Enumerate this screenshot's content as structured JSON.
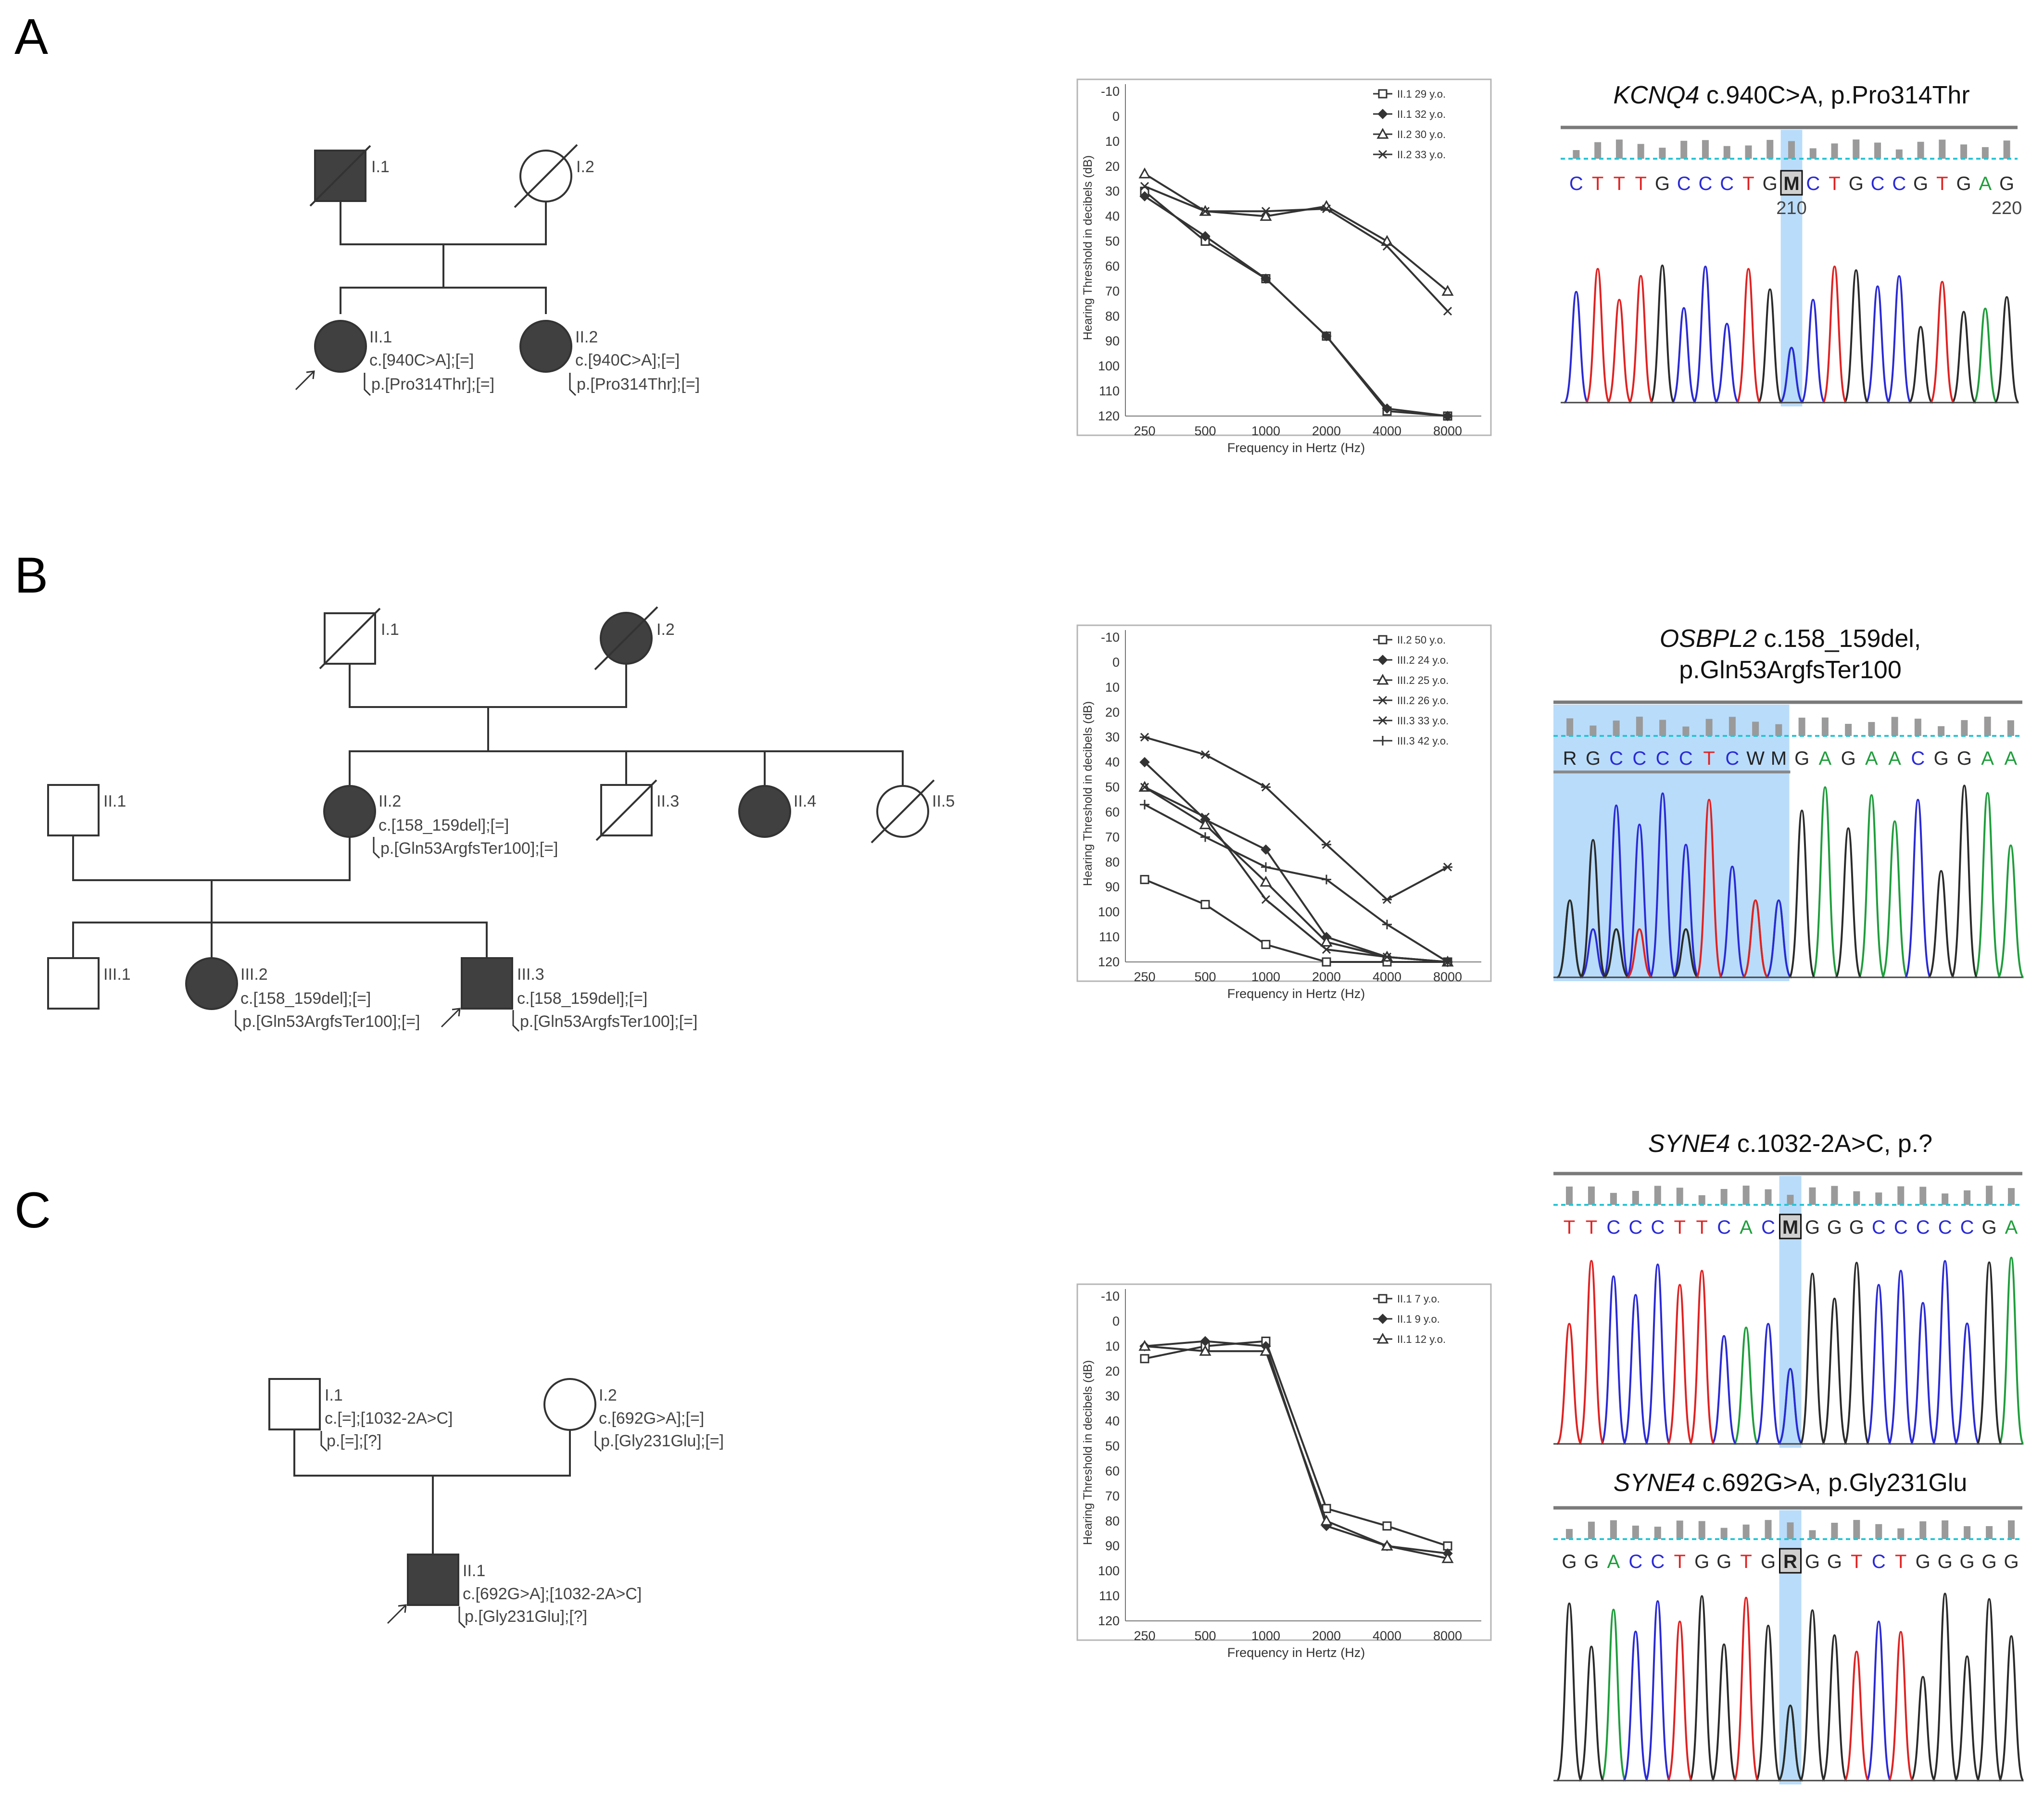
{
  "panels": [
    {
      "letter": "A",
      "pedigree": {
        "labels": {
          "I1": "I.1",
          "I2": "I.2",
          "II1": "II.1",
          "II2": "II.2"
        },
        "variants": {
          "II1_c": "c.[940C>A];[=]",
          "II1_p": "p.[Pro314Thr];[=]",
          "II2_c": "c.[940C>A];[=]",
          "II2_p": "p.[Pro314Thr];[=]"
        }
      },
      "seq": {
        "title_gene": "KCNQ4",
        "title_rest": " c.940C>A, p.Pro314Thr",
        "bases": [
          "C",
          "T",
          "T",
          "T",
          "G",
          "C",
          "C",
          "C",
          "T",
          "G",
          "M",
          "C",
          "T",
          "G",
          "C",
          "C",
          "G",
          "T",
          "G",
          "A",
          "G"
        ],
        "positions": [
          "210",
          "220"
        ]
      }
    },
    {
      "letter": "B",
      "pedigree": {
        "labels": {
          "I1": "I.1",
          "I2": "I.2",
          "II1": "II.1",
          "II2": "II.2",
          "II3": "II.3",
          "II4": "II.4",
          "II5": "II.5",
          "III1": "III.1",
          "III2": "III.2",
          "III3": "III.3"
        },
        "variants": {
          "II2_c": "c.[158_159del];[=]",
          "II2_p": "p.[Gln53ArgfsTer100];[=]",
          "III2_c": "c.[158_159del];[=]",
          "III2_p": "p.[Gln53ArgfsTer100];[=]",
          "III3_c": "c.[158_159del];[=]",
          "III3_p": "p.[Gln53ArgfsTer100];[=]"
        }
      },
      "seq": {
        "title_gene": "OSBPL2",
        "title_rest": " c.158_159del,",
        "title_line2": "p.Gln53ArgfsTer100",
        "bases": [
          "R",
          "G",
          "C",
          "C",
          "C",
          "C",
          "T",
          "C",
          "W",
          "M",
          "G",
          "A",
          "G",
          "A",
          "A",
          "C",
          "G",
          "G",
          "A",
          "A"
        ]
      }
    },
    {
      "letter": "C",
      "pedigree": {
        "labels": {
          "I1": "I.1",
          "I2": "I.2",
          "II1": "II.1"
        },
        "variants": {
          "I1_c": "c.[=];[1032-2A>C]",
          "I1_p": "p.[=];[?]",
          "I2_c": "c.[692G>A];[=]",
          "I2_p": "p.[Gly231Glu];[=]",
          "II1_c": "c.[692G>A];[1032-2A>C]",
          "II1_p": "p.[Gly231Glu];[?]"
        }
      },
      "seq": {
        "title_gene": "SYNE4",
        "title_rest": " c.1032-2A>C, p.?",
        "bases": [
          "T",
          "T",
          "C",
          "C",
          "C",
          "T",
          "T",
          "C",
          "A",
          "C",
          "M",
          "G",
          "G",
          "G",
          "C",
          "C",
          "C",
          "C",
          "C",
          "G",
          "A"
        ]
      },
      "seq2": {
        "title_gene": "SYNE4",
        "title_rest": " c.692G>A, p.Gly231Glu",
        "bases": [
          "G",
          "G",
          "A",
          "C",
          "C",
          "T",
          "G",
          "G",
          "T",
          "G",
          "R",
          "G",
          "G",
          "T",
          "C",
          "T",
          "G",
          "G",
          "G",
          "G",
          "G"
        ]
      }
    }
  ],
  "chart_data": [
    {
      "type": "line",
      "xlabel": "Frequency in Hertz (Hz)",
      "ylabel": "Hearing Threshold in decibels (dB)",
      "categories": [
        "250",
        "500",
        "1000",
        "2000",
        "4000",
        "8000"
      ],
      "ylim": [
        -10,
        120
      ],
      "yticks": [
        "-10",
        "0",
        "10",
        "20",
        "30",
        "40",
        "50",
        "60",
        "70",
        "80",
        "90",
        "100",
        "110",
        "120"
      ],
      "legend_position": "top-right",
      "series": [
        {
          "name": "II.1 29 y.o.",
          "marker": "square",
          "values": [
            30,
            50,
            65,
            88,
            118,
            120
          ]
        },
        {
          "name": "II.1 32 y.o.",
          "marker": "diamond",
          "values": [
            32,
            48,
            65,
            88,
            117,
            120
          ]
        },
        {
          "name": "II.2 30 y.o.",
          "marker": "triangle",
          "values": [
            23,
            38,
            40,
            36,
            50,
            70
          ]
        },
        {
          "name": "II.2 33 y.o.",
          "marker": "cross",
          "values": [
            28,
            38,
            38,
            37,
            52,
            78
          ]
        }
      ]
    },
    {
      "type": "line",
      "xlabel": "Frequency in Hertz (Hz)",
      "ylabel": "Hearing Threshold in decibels (dB)",
      "categories": [
        "250",
        "500",
        "1000",
        "2000",
        "4000",
        "8000"
      ],
      "ylim": [
        -10,
        120
      ],
      "yticks": [
        "-10",
        "0",
        "10",
        "20",
        "30",
        "40",
        "50",
        "60",
        "70",
        "80",
        "90",
        "100",
        "110",
        "120"
      ],
      "legend_position": "top-right",
      "series": [
        {
          "name": "II.2 50 y.o.",
          "marker": "square",
          "values": [
            87,
            97,
            113,
            120,
            120,
            120
          ]
        },
        {
          "name": "III.2 24 y.o.",
          "marker": "diamond",
          "values": [
            40,
            63,
            75,
            110,
            118,
            120
          ]
        },
        {
          "name": "III.2 25 y.o.",
          "marker": "triangle",
          "values": [
            50,
            65,
            88,
            112,
            118,
            120
          ]
        },
        {
          "name": "III.2 26 y.o.",
          "marker": "cross",
          "values": [
            50,
            62,
            95,
            115,
            118,
            120
          ]
        },
        {
          "name": "III.3 33 y.o.",
          "marker": "asterisk",
          "values": [
            30,
            37,
            50,
            73,
            95,
            82
          ]
        },
        {
          "name": "III.3 42 y.o.",
          "marker": "plus",
          "values": [
            57,
            70,
            82,
            87,
            105,
            120
          ]
        }
      ]
    },
    {
      "type": "line",
      "xlabel": "Frequency in Hertz (Hz)",
      "ylabel": "Hearing Threshold in decibels (dB)",
      "categories": [
        "250",
        "500",
        "1000",
        "2000",
        "4000",
        "8000"
      ],
      "ylim": [
        -10,
        120
      ],
      "yticks": [
        "-10",
        "0",
        "10",
        "20",
        "30",
        "40",
        "50",
        "60",
        "70",
        "80",
        "90",
        "100",
        "110",
        "120"
      ],
      "legend_position": "top-right",
      "series": [
        {
          "name": "II.1 7 y.o.",
          "marker": "square",
          "values": [
            15,
            10,
            8,
            75,
            82,
            90
          ]
        },
        {
          "name": "II.1 9 y.o.",
          "marker": "diamond",
          "values": [
            10,
            8,
            10,
            82,
            90,
            93
          ]
        },
        {
          "name": "II.1 12 y.o.",
          "marker": "triangle",
          "values": [
            10,
            12,
            12,
            80,
            90,
            95
          ]
        }
      ]
    }
  ]
}
